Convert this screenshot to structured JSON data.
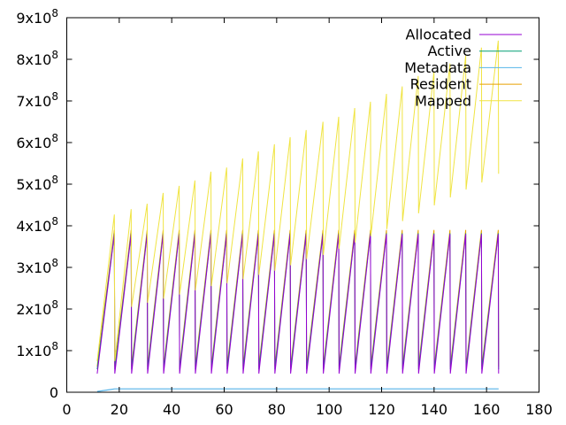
{
  "chart_data": {
    "type": "line",
    "title": "",
    "xlabel": "",
    "ylabel": "",
    "xlim": [
      0,
      180
    ],
    "ylim": [
      0,
      900000000
    ],
    "x_ticks": [
      0,
      20,
      40,
      60,
      80,
      100,
      120,
      140,
      160,
      180
    ],
    "x_tick_labels": [
      "0",
      "20",
      "40",
      "60",
      "80",
      "100",
      "120",
      "140",
      "160",
      "180"
    ],
    "y_ticks": [
      0,
      100000000,
      200000000,
      300000000,
      400000000,
      500000000,
      600000000,
      700000000,
      800000000,
      900000000
    ],
    "y_tick_labels": [
      {
        "mant": "0",
        "exp": ""
      },
      {
        "mant": "1x10",
        "exp": "8"
      },
      {
        "mant": "2x10",
        "exp": "8"
      },
      {
        "mant": "3x10",
        "exp": "8"
      },
      {
        "mant": "4x10",
        "exp": "8"
      },
      {
        "mant": "5x10",
        "exp": "8"
      },
      {
        "mant": "6x10",
        "exp": "8"
      },
      {
        "mant": "7x10",
        "exp": "8"
      },
      {
        "mant": "8x10",
        "exp": "8"
      },
      {
        "mant": "9x10",
        "exp": "8"
      }
    ],
    "grid": false,
    "legend_position": "top-right",
    "cycle_x": [
      11.6,
      18.3,
      24.7,
      30.8,
      36.9,
      43.0,
      49.0,
      55.1,
      61.1,
      67.2,
      73.2,
      79.3,
      85.3,
      91.4,
      97.8,
      103.8,
      109.9,
      115.9,
      122.0,
      128.0,
      134.1,
      140.1,
      146.2,
      152.2,
      158.2,
      164.6
    ],
    "series": [
      {
        "name": "Allocated",
        "color": "#9400d3",
        "trough": 45000000,
        "peak": 380000000,
        "peaks": []
      },
      {
        "name": "Active",
        "color": "#009e73",
        "trough": 55000000,
        "peak": 382000000,
        "peaks": []
      },
      {
        "name": "Metadata",
        "color": "#56b4e9",
        "start": 2000000,
        "plateau": 8000000
      },
      {
        "name": "Resident",
        "color": "#e69f00",
        "trough": 62000000,
        "peak": 390000000,
        "peaks": []
      },
      {
        "name": "Mapped",
        "color": "#f0e442",
        "start": 75000000,
        "peaks": [
          427000000,
          440000000,
          453000000,
          479000000,
          496000000,
          509000000,
          530000000,
          540000000,
          562000000,
          579000000,
          596000000,
          613000000,
          630000000,
          650000000,
          662000000,
          683000000,
          698000000,
          717000000,
          735000000,
          760000000,
          770000000,
          790000000,
          809000000,
          828000000,
          845000000
        ],
        "troughs": [
          190000000,
          195000000,
          205000000,
          215000000,
          225000000,
          235000000,
          245000000,
          255000000,
          262000000,
          272000000,
          282000000,
          292000000,
          305000000,
          320000000,
          330000000,
          345000000,
          360000000,
          375000000,
          392000000,
          411000000,
          430000000,
          449000000,
          468000000,
          487000000,
          504000000,
          525000000
        ]
      }
    ]
  },
  "legend": {
    "items": [
      {
        "label": "Allocated",
        "color": "#9400d3"
      },
      {
        "label": "Active",
        "color": "#009e73"
      },
      {
        "label": "Metadata",
        "color": "#56b4e9"
      },
      {
        "label": "Resident",
        "color": "#e69f00"
      },
      {
        "label": "Mapped",
        "color": "#f0e442"
      }
    ]
  }
}
